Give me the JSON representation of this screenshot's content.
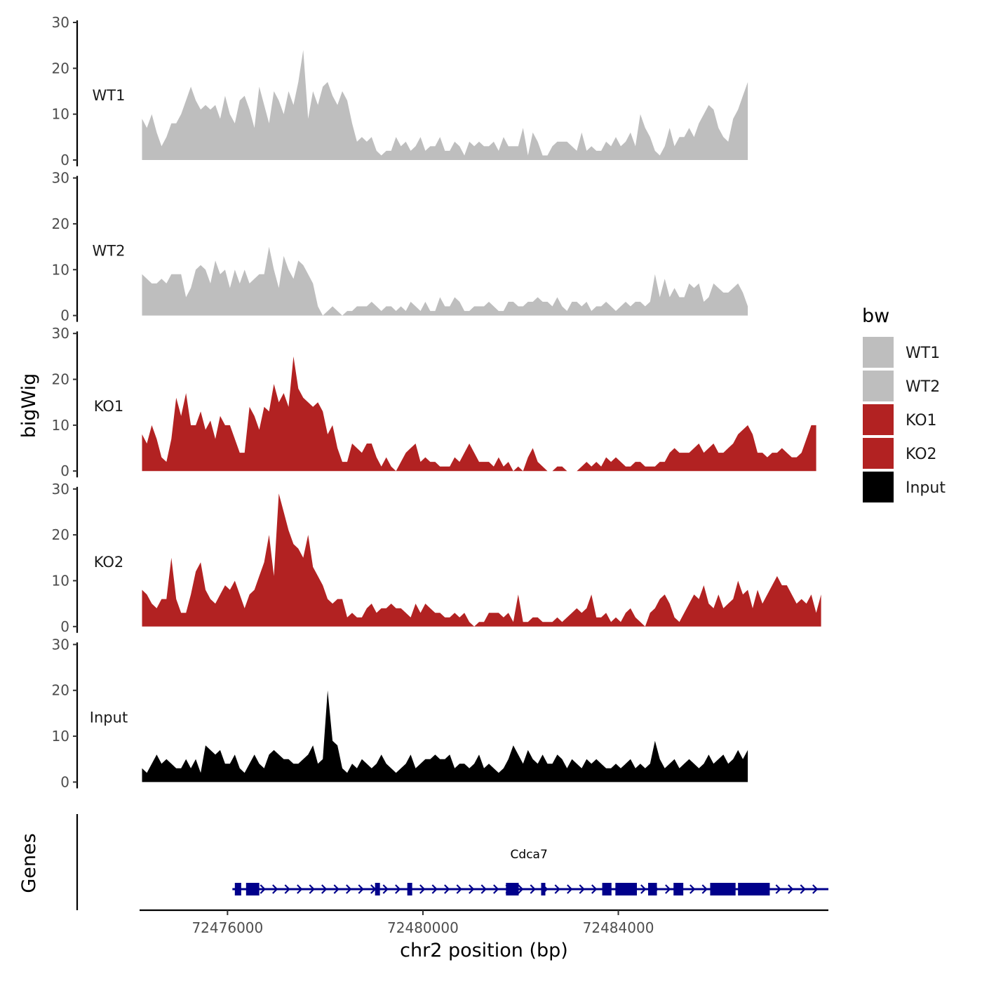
{
  "chart_data": {
    "type": "area",
    "title": "",
    "xlabel": "chr2 position (bp)",
    "ylabel": "bigWig",
    "genes_label": "Genes",
    "xlim": [
      72474200,
      72488300
    ],
    "ylim": [
      0,
      30
    ],
    "x_ticks": [
      72476000,
      72480000,
      72484000
    ],
    "x_tick_labels": [
      "72476000",
      "72480000",
      "72484000"
    ],
    "y_ticks": [
      0,
      10,
      20,
      30
    ],
    "y_tick_labels": [
      "0",
      "10",
      "20",
      "30"
    ],
    "legend": {
      "title": "bw",
      "position": "right",
      "entries": [
        {
          "label": "WT1",
          "color": "#bebebe"
        },
        {
          "label": "WT2",
          "color": "#bebebe"
        },
        {
          "label": "KO1",
          "color": "#b22222"
        },
        {
          "label": "KO2",
          "color": "#b22222"
        },
        {
          "label": "Input",
          "color": "#000000"
        }
      ]
    },
    "x_start": 72476000,
    "x_step": 100,
    "series": [
      {
        "name": "WT1",
        "color": "#bebebe",
        "x0": 72474250,
        "dx": 100,
        "values": [
          9,
          7,
          10,
          6,
          3,
          5,
          8,
          8,
          10,
          13,
          16,
          13,
          11,
          12,
          11,
          12,
          9,
          14,
          10,
          8,
          13,
          14,
          11,
          7,
          16,
          12,
          8,
          15,
          13,
          10,
          15,
          12,
          17,
          24,
          9,
          15,
          12,
          16,
          17,
          14,
          12,
          15,
          13,
          8,
          4,
          5,
          4,
          5,
          2,
          1,
          2,
          2,
          5,
          3,
          4,
          2,
          3,
          5,
          2,
          3,
          3,
          5,
          2,
          2,
          4,
          3,
          1,
          4,
          3,
          4,
          3,
          3,
          4,
          2,
          5,
          3,
          3,
          3,
          7,
          1,
          6,
          4,
          1,
          1,
          3,
          4,
          4,
          4,
          3,
          2,
          6,
          2,
          3,
          2,
          2,
          4,
          3,
          5,
          3,
          4,
          6,
          3,
          10,
          7,
          5,
          2,
          1,
          3,
          7,
          3,
          5,
          5,
          7,
          5,
          8,
          10,
          12,
          11,
          7,
          5,
          4,
          9,
          11,
          14,
          17
        ]
      },
      {
        "name": "WT2",
        "color": "#bebebe",
        "x0": 72474250,
        "dx": 100,
        "values": [
          9,
          8,
          7,
          7,
          8,
          7,
          9,
          9,
          9,
          4,
          6,
          10,
          11,
          10,
          7,
          12,
          9,
          10,
          6,
          10,
          7,
          10,
          7,
          8,
          9,
          9,
          15,
          10,
          6,
          13,
          10,
          8,
          12,
          11,
          9,
          7,
          2,
          0,
          1,
          2,
          1,
          0,
          1,
          1,
          2,
          2,
          2,
          3,
          2,
          1,
          2,
          2,
          1,
          2,
          1,
          3,
          2,
          1,
          3,
          1,
          1,
          4,
          2,
          2,
          4,
          3,
          1,
          1,
          2,
          2,
          2,
          3,
          2,
          1,
          1,
          3,
          3,
          2,
          2,
          3,
          3,
          4,
          3,
          3,
          2,
          4,
          2,
          1,
          3,
          3,
          2,
          3,
          1,
          2,
          2,
          3,
          2,
          1,
          2,
          3,
          2,
          3,
          3,
          2,
          3,
          9,
          4,
          8,
          4,
          6,
          4,
          4,
          7,
          6,
          7,
          3,
          4,
          7,
          6,
          5,
          5,
          6,
          7,
          5,
          2
        ]
      },
      {
        "name": "KO1",
        "color": "#b22222",
        "x0": 72474250,
        "dx": 100,
        "values": [
          8,
          6,
          10,
          7,
          3,
          2,
          7,
          16,
          12,
          17,
          10,
          10,
          13,
          9,
          11,
          7,
          12,
          10,
          10,
          7,
          4,
          4,
          14,
          12,
          9,
          14,
          13,
          19,
          15,
          17,
          14,
          25,
          18,
          16,
          15,
          14,
          15,
          13,
          8,
          10,
          5,
          2,
          2,
          6,
          5,
          4,
          6,
          6,
          3,
          1,
          3,
          1,
          0,
          2,
          4,
          5,
          6,
          2,
          3,
          2,
          2,
          1,
          1,
          1,
          3,
          2,
          4,
          6,
          4,
          2,
          2,
          2,
          1,
          3,
          1,
          2,
          0,
          1,
          0,
          3,
          5,
          2,
          1,
          0,
          0,
          1,
          1,
          0,
          0,
          0,
          1,
          2,
          1,
          2,
          1,
          3,
          2,
          3,
          2,
          1,
          1,
          2,
          2,
          1,
          1,
          1,
          2,
          2,
          4,
          5,
          4,
          4,
          4,
          5,
          6,
          4,
          5,
          6,
          4,
          4,
          5,
          6,
          8,
          9,
          10,
          8,
          4,
          4,
          3,
          4,
          4,
          5,
          4,
          3,
          3,
          4,
          7,
          10,
          10
        ]
      },
      {
        "name": "KO2",
        "color": "#b22222",
        "x0": 72474250,
        "dx": 100,
        "values": [
          8,
          7,
          5,
          4,
          6,
          6,
          15,
          6,
          3,
          3,
          7,
          12,
          14,
          8,
          6,
          5,
          7,
          9,
          8,
          10,
          7,
          4,
          7,
          8,
          11,
          14,
          20,
          11,
          29,
          25,
          21,
          18,
          17,
          15,
          20,
          13,
          11,
          9,
          6,
          5,
          6,
          6,
          2,
          3,
          2,
          2,
          4,
          5,
          3,
          4,
          4,
          5,
          4,
          4,
          3,
          2,
          5,
          3,
          5,
          4,
          3,
          3,
          2,
          2,
          3,
          2,
          3,
          1,
          0,
          1,
          1,
          3,
          3,
          3,
          2,
          3,
          1,
          7,
          1,
          1,
          2,
          2,
          1,
          1,
          1,
          2,
          1,
          2,
          3,
          4,
          3,
          4,
          7,
          2,
          2,
          3,
          1,
          2,
          1,
          3,
          4,
          2,
          1,
          0,
          3,
          4,
          6,
          7,
          5,
          2,
          1,
          3,
          5,
          7,
          6,
          9,
          5,
          4,
          7,
          4,
          5,
          6,
          10,
          7,
          8,
          4,
          8,
          5,
          7,
          9,
          11,
          9,
          9,
          7,
          5,
          6,
          5,
          7,
          3,
          7
        ]
      },
      {
        "name": "Input",
        "color": "#000000",
        "x0": 72474250,
        "dx": 100,
        "values": [
          3,
          2,
          4,
          6,
          4,
          5,
          4,
          3,
          3,
          5,
          3,
          5,
          2,
          8,
          7,
          6,
          7,
          4,
          4,
          6,
          3,
          2,
          4,
          6,
          4,
          3,
          6,
          7,
          6,
          5,
          5,
          4,
          4,
          5,
          6,
          8,
          4,
          5,
          20,
          9,
          8,
          3,
          2,
          4,
          3,
          5,
          4,
          3,
          4,
          6,
          4,
          3,
          2,
          3,
          4,
          6,
          3,
          4,
          5,
          5,
          6,
          5,
          5,
          6,
          3,
          4,
          4,
          3,
          4,
          6,
          3,
          4,
          3,
          2,
          3,
          5,
          8,
          6,
          4,
          7,
          5,
          4,
          6,
          4,
          4,
          6,
          5,
          3,
          5,
          4,
          3,
          5,
          4,
          5,
          4,
          3,
          3,
          4,
          3,
          4,
          5,
          3,
          4,
          3,
          4,
          9,
          5,
          3,
          4,
          5,
          3,
          4,
          5,
          4,
          3,
          4,
          6,
          4,
          5,
          6,
          4,
          5,
          7,
          5,
          7
        ]
      }
    ],
    "genes": [
      {
        "name": "Cdca7",
        "strand": "+",
        "start": 72476100,
        "end": 72488300,
        "color": "#00008b",
        "exons": [
          {
            "start": 72476150,
            "end": 72476280
          },
          {
            "start": 72476380,
            "end": 72476650
          },
          {
            "start": 72479020,
            "end": 72479120
          },
          {
            "start": 72479680,
            "end": 72479780
          },
          {
            "start": 72481700,
            "end": 72481960
          },
          {
            "start": 72482420,
            "end": 72482490
          },
          {
            "start": 72483670,
            "end": 72483860
          },
          {
            "start": 72483940,
            "end": 72484380
          },
          {
            "start": 72484610,
            "end": 72484790
          },
          {
            "start": 72485130,
            "end": 72485330
          },
          {
            "start": 72485880,
            "end": 72486400
          },
          {
            "start": 72486450,
            "end": 72487100
          }
        ]
      }
    ]
  }
}
